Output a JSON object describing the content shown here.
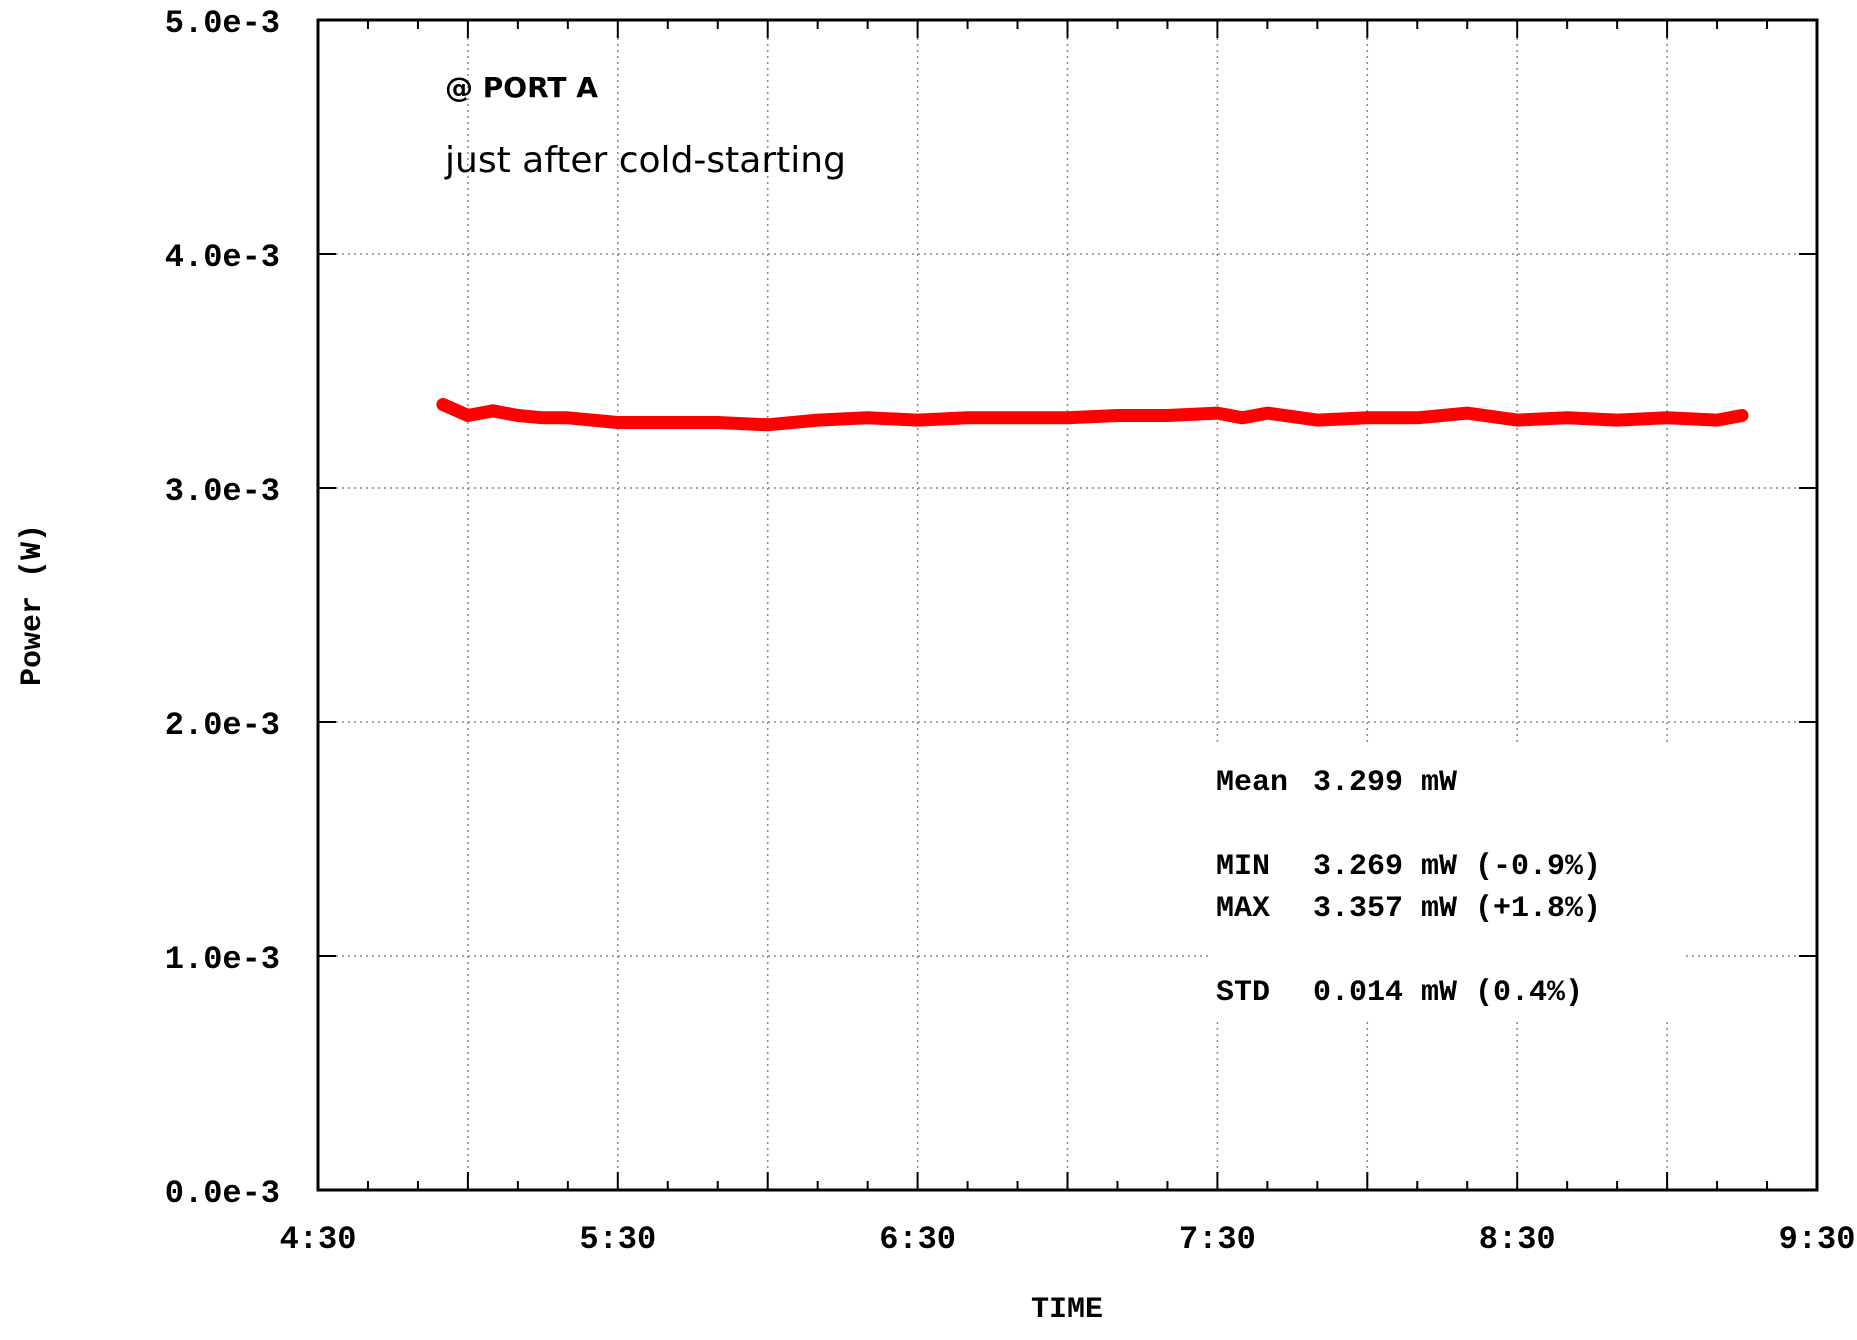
{
  "chart_data": {
    "type": "line",
    "xlabel": "TIME",
    "ylabel": "Power (W)",
    "x_ticks": [
      "4:30",
      "5:30",
      "6:30",
      "7:30",
      "8:30",
      "9:30"
    ],
    "y_ticks": [
      "0.0e-3",
      "1.0e-3",
      "2.0e-3",
      "3.0e-3",
      "4.0e-3",
      "5.0e-3"
    ],
    "xlim": [
      "4:30",
      "9:30"
    ],
    "ylim": [
      0,
      0.005
    ],
    "grid": true,
    "series": [
      {
        "color": "#ff0000",
        "x": [
          "4:55",
          "5:00",
          "5:05",
          "5:10",
          "5:15",
          "5:20",
          "5:30",
          "5:40",
          "5:50",
          "6:00",
          "6:10",
          "6:20",
          "6:30",
          "6:40",
          "6:50",
          "7:00",
          "7:10",
          "7:20",
          "7:30",
          "7:35",
          "7:40",
          "7:50",
          "8:00",
          "8:10",
          "8:20",
          "8:30",
          "8:40",
          "8:50",
          "9:00",
          "9:10",
          "9:15"
        ],
        "values": [
          0.003357,
          0.00331,
          0.00333,
          0.00331,
          0.0033,
          0.0033,
          0.00328,
          0.00328,
          0.00328,
          0.00327,
          0.00329,
          0.0033,
          0.00329,
          0.0033,
          0.0033,
          0.0033,
          0.00331,
          0.00331,
          0.00332,
          0.0033,
          0.00332,
          0.00329,
          0.0033,
          0.0033,
          0.00332,
          0.00329,
          0.0033,
          0.00329,
          0.0033,
          0.00329,
          0.00331
        ]
      }
    ]
  },
  "annotations": {
    "port": "@ PORT A",
    "condition": "just after cold-starting"
  },
  "stats": {
    "mean_label": "Mean",
    "mean_value": "3.299 mW",
    "min_label": "MIN",
    "min_value": "3.269 mW (-0.9%)",
    "max_label": "MAX",
    "max_value": "3.357 mW (+1.8%)",
    "std_label": "STD",
    "std_value": "0.014 mW (0.4%)"
  }
}
